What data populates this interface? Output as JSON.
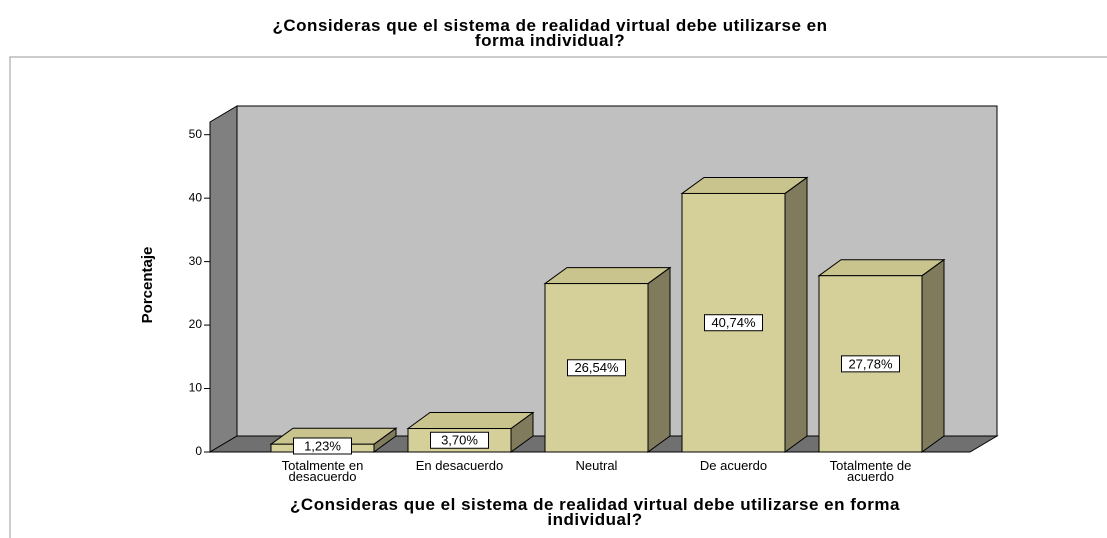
{
  "chart_data": {
    "type": "bar3d",
    "title": "¿Consideras que el sistema de realidad virtual debe utilizarse en forma individual?",
    "x_label": "¿Consideras que el sistema de realidad virtual debe utilizarse en forma individual?",
    "y_label": "Porcentaje",
    "categories": [
      "Totalmente en desacuerdo",
      "En desacuerdo",
      "Neutral",
      "De acuerdo",
      "Totalmente de acuerdo"
    ],
    "values": [
      1.23,
      3.7,
      26.54,
      40.74,
      27.78
    ],
    "value_labels": [
      "1,23%",
      "3,70%",
      "26,54%",
      "40,74%",
      "27,78%"
    ],
    "color": "#d5cf9a",
    "ylim": [
      0,
      52
    ],
    "yticks": [
      0,
      10,
      20,
      30,
      40,
      50
    ]
  }
}
